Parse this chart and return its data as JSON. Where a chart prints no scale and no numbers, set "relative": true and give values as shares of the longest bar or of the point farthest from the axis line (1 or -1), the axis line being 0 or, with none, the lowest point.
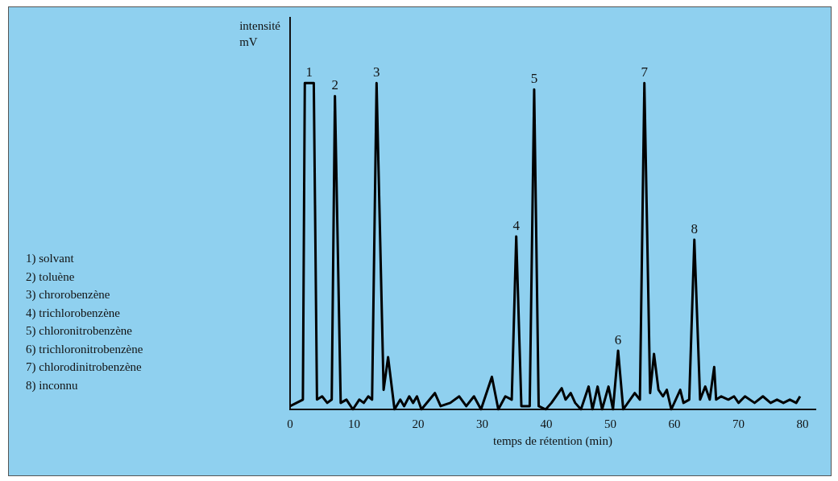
{
  "chart_data": {
    "type": "line",
    "relative": true,
    "xlabel": "temps de rétention (min)",
    "ylabel": "intensité\nmV",
    "xlim": [
      0,
      82
    ],
    "xticks": [
      0,
      10,
      20,
      30,
      40,
      50,
      60,
      70,
      80
    ],
    "grid": false,
    "legend": false,
    "marker": "none",
    "line_style": "solid",
    "x": [
      0,
      2.0,
      2.3,
      3.7,
      4.2,
      5.0,
      5.8,
      6.5,
      7.0,
      7.9,
      8.8,
      9.8,
      10.8,
      11.5,
      12.2,
      12.8,
      13.5,
      14.6,
      15.3,
      16.3,
      17.2,
      17.8,
      18.6,
      19.2,
      19.8,
      20.5,
      22.6,
      23.5,
      25.0,
      26.4,
      27.5,
      28.7,
      29.8,
      31.5,
      32.5,
      33.6,
      34.6,
      35.3,
      36.1,
      37.4,
      38.1,
      38.8,
      39.9,
      40.8,
      42.4,
      43.0,
      43.8,
      44.5,
      45.4,
      46.6,
      47.2,
      48.0,
      48.7,
      49.7,
      50.4,
      51.2,
      52.0,
      53.8,
      54.6,
      55.3,
      56.2,
      56.8,
      57.5,
      58.2,
      58.8,
      59.5,
      60.9,
      61.4,
      62.3,
      63.1,
      64.0,
      64.8,
      65.5,
      66.2,
      66.5,
      67.3,
      68.4,
      69.3,
      70.0,
      71.0,
      72.5,
      73.8,
      75.0,
      76.0,
      77.0,
      78.0,
      79.0,
      79.6
    ],
    "series": [
      {
        "color": "#000000",
        "values": [
          0.01,
          0.03,
          1.0,
          1.0,
          0.03,
          0.04,
          0.02,
          0.03,
          0.96,
          0.02,
          0.03,
          0.0,
          0.03,
          0.02,
          0.04,
          0.03,
          1.0,
          0.06,
          0.16,
          0.0,
          0.03,
          0.01,
          0.04,
          0.02,
          0.04,
          0.0,
          0.05,
          0.01,
          0.02,
          0.04,
          0.01,
          0.04,
          0.0,
          0.1,
          0.0,
          0.04,
          0.03,
          0.53,
          0.01,
          0.01,
          0.98,
          0.01,
          0.0,
          0.02,
          0.065,
          0.03,
          0.05,
          0.02,
          0.0,
          0.07,
          0.0,
          0.07,
          0.0,
          0.07,
          0.0,
          0.18,
          0.0,
          0.05,
          0.03,
          1.0,
          0.05,
          0.17,
          0.06,
          0.04,
          0.06,
          0.0,
          0.06,
          0.02,
          0.03,
          0.52,
          0.03,
          0.07,
          0.03,
          0.13,
          0.03,
          0.04,
          0.03,
          0.04,
          0.02,
          0.04,
          0.02,
          0.04,
          0.02,
          0.03,
          0.02,
          0.03,
          0.02,
          0.04
        ]
      }
    ],
    "annotations": [
      {
        "text": "1",
        "x": 3.0,
        "y": 1.0
      },
      {
        "text": "2",
        "x": 7.0,
        "y": 0.96
      },
      {
        "text": "3",
        "x": 13.5,
        "y": 1.0
      },
      {
        "text": "4",
        "x": 35.3,
        "y": 0.53
      },
      {
        "text": "5",
        "x": 38.1,
        "y": 0.98
      },
      {
        "text": "6",
        "x": 51.2,
        "y": 0.18
      },
      {
        "text": "7",
        "x": 55.3,
        "y": 1.0
      },
      {
        "text": "8",
        "x": 63.1,
        "y": 0.52
      },
      "1) solvant",
      "2) toluène",
      "3) chrorobenzène",
      "4) trichlorobenzène",
      "5) chloronitrobenzène",
      "6) trichloronitrobenzène",
      "7) chlorodinitrobenzène",
      "8) inconnu"
    ]
  }
}
